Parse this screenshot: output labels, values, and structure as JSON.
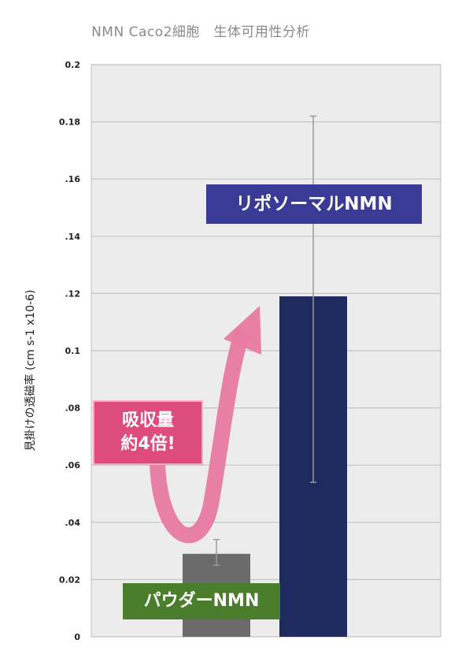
{
  "chart_data": {
    "type": "bar",
    "title": "NMN Caco2細胞　生体可用性分析",
    "ylabel": "見掛けの透磁率 (cm s-1 x10-6)",
    "xlabel": "",
    "categories": [
      "パウダーNMN",
      "リポソーマルNMN"
    ],
    "values": [
      0.029,
      0.119
    ],
    "error_bars": [
      {
        "low": 0.025,
        "high": 0.034
      },
      {
        "low": 0.054,
        "high": 0.182
      }
    ],
    "bar_colors": [
      "#6b6b6b",
      "#1f2a5e"
    ],
    "ylim": [
      0,
      0.2
    ],
    "yticks": [
      0,
      0.02,
      0.04,
      0.06,
      0.08,
      0.1,
      0.12,
      0.14,
      0.16,
      0.18,
      0.2
    ],
    "ytick_labels": [
      "0",
      "0.02",
      ".04",
      ".06",
      ".08",
      "0.1",
      ".12",
      ".14",
      ".16",
      "0.18",
      "0.2"
    ],
    "grid": true,
    "annotations": {
      "liposomal_label": "リポソーマルNMN",
      "powder_label": "パウダーNMN",
      "absorb_line1": "吸収量",
      "absorb_line2": "約4倍!"
    }
  },
  "colors": {
    "plot_bg": "#ececec",
    "grid": "#c4c4c4",
    "arrow": "#e87aa1"
  }
}
